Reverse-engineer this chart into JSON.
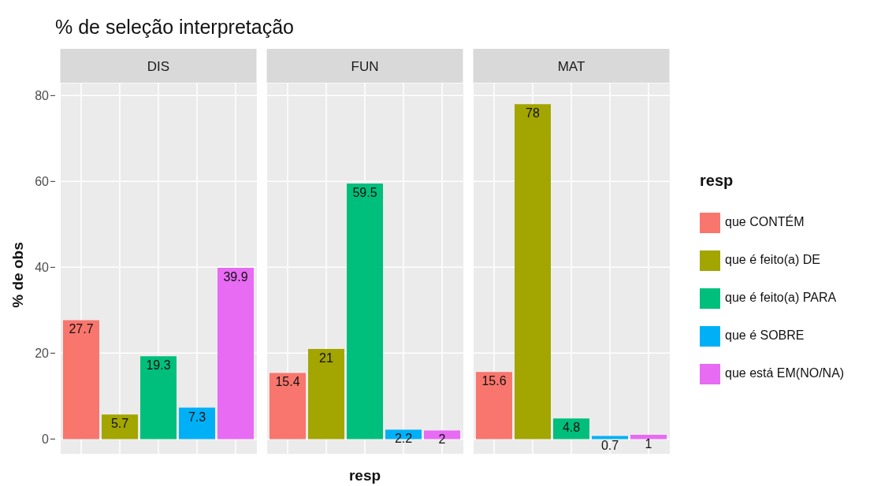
{
  "chart_data": {
    "type": "bar",
    "title": "% de seleção interpretação",
    "xlabel": "resp",
    "ylabel": "% de obs",
    "legend_title": "resp",
    "legend": "right",
    "grid": true,
    "data_labels": true,
    "categories": [
      "DIS",
      "FUN",
      "MAT"
    ],
    "ylim": [
      -3.6,
      83
    ],
    "yticks": [
      0,
      20,
      40,
      60,
      80
    ],
    "series": [
      {
        "name": "que CONTÉM",
        "color": "#f8766d",
        "values": [
          27.7,
          15.4,
          15.6
        ]
      },
      {
        "name": "que é feito(a) DE",
        "color": "#a3a500",
        "values": [
          5.7,
          21,
          78
        ]
      },
      {
        "name": "que é feito(a) PARA",
        "color": "#00bf7d",
        "values": [
          19.3,
          59.5,
          4.8
        ]
      },
      {
        "name": "que é SOBRE",
        "color": "#00b0f6",
        "values": [
          7.3,
          2.2,
          0.7
        ]
      },
      {
        "name": "que está EM(NO/NA)",
        "color": "#e76bf3",
        "values": [
          39.9,
          2,
          1
        ]
      }
    ]
  }
}
